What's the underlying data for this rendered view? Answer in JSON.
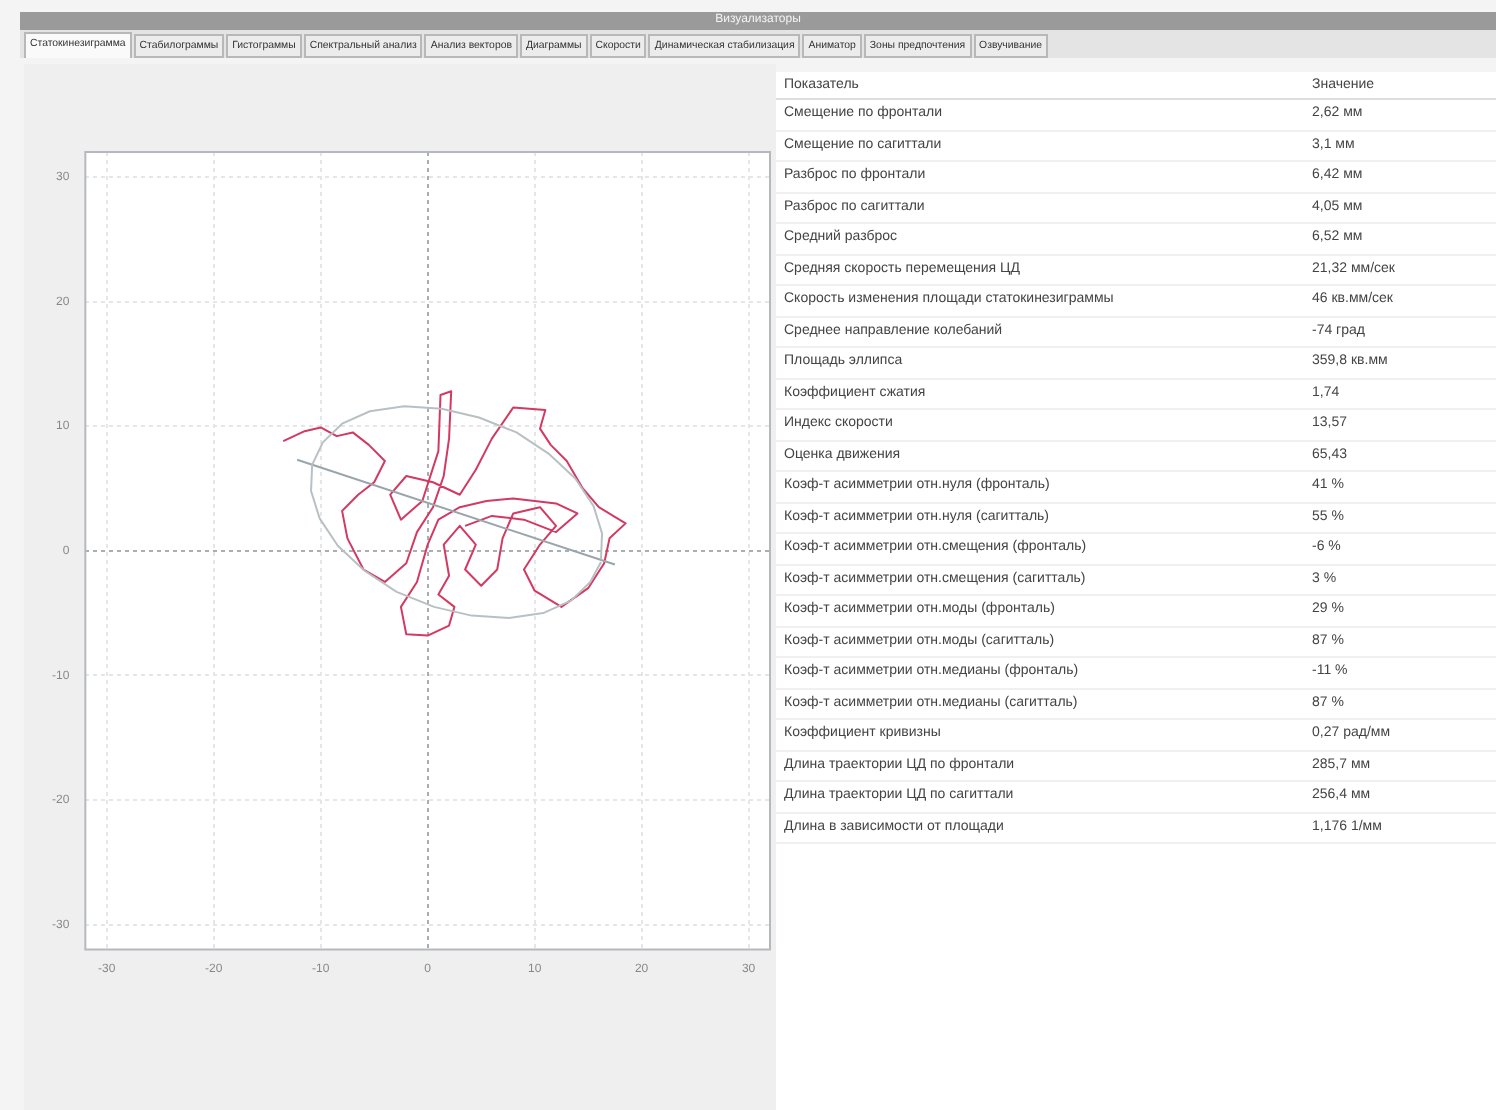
{
  "chart_data": [
    {
      "type": "other",
      "title": "Визуализаторы",
      "categories": [
        "Статокинезиграмма",
        "Стабилограммы",
        "Гистограммы",
        "Спектральный анализ",
        "Анализ векторов",
        "Диаграммы",
        "Скорости",
        "Динамическая стабилизация",
        "Аниматор",
        "Зоны предпочтения",
        "Озвучивание"
      ]
    },
    {
      "type": "line",
      "xlim": [
        -32,
        32
      ],
      "ylim": [
        -32,
        32
      ],
      "xticks": [
        -30,
        -20,
        -10,
        0,
        10,
        20,
        30
      ],
      "yticks": [
        -30,
        -20,
        -10,
        0,
        10,
        20,
        30
      ],
      "grid": true,
      "legend": false,
      "marker": "none",
      "line_style": "solid",
      "series": [
        {
          "color": "#b9c0c4",
          "x": [
            16.2,
            16.3,
            15.5,
            13.8,
            11.3,
            8.3,
            4.8,
            1.3,
            -2.2,
            -5.4,
            -8.0,
            -9.8,
            -10.8,
            -10.9,
            -10.1,
            -8.4,
            -5.9,
            -2.9,
            0.6,
            4.1,
            7.6,
            10.8,
            13.4,
            15.2,
            16.2
          ],
          "values": [
            -0.7,
            1.4,
            3.6,
            5.8,
            7.8,
            9.5,
            10.7,
            11.4,
            11.6,
            11.2,
            10.2,
            8.7,
            6.9,
            4.8,
            2.6,
            0.4,
            -1.6,
            -3.3,
            -4.5,
            -5.2,
            -5.4,
            -5.0,
            -4.0,
            -2.5,
            -0.9
          ]
        },
        {
          "color": "#9aa5ab",
          "x": [
            -12.2,
            17.5
          ],
          "values": [
            7.3,
            -1.1
          ]
        },
        {
          "color": "#d23a62",
          "x": [
            -13.5,
            -11.5,
            -10,
            -8.5,
            -7,
            -5.5,
            -4,
            -5,
            -6.5,
            -8,
            -7.5,
            -6,
            -4,
            -2,
            -1,
            0.5,
            1.5,
            2,
            2.2,
            1.2,
            1,
            -0.5,
            -2.5,
            -3.5,
            -2,
            0.5,
            3,
            4.5,
            6,
            8,
            11,
            10.5,
            11.5,
            13,
            14.5,
            16,
            18.5,
            17,
            16.5,
            15,
            12.5,
            10,
            9,
            10.5,
            12,
            10.5,
            8,
            7,
            6.5,
            5,
            3.5,
            4.5,
            3,
            1.5,
            2,
            1,
            2.5,
            2,
            0,
            -2,
            -2.5,
            -1,
            0,
            1,
            3,
            5.5,
            8,
            12,
            14,
            12,
            9,
            6,
            3.5
          ],
          "values": [
            8.8,
            9.6,
            9.9,
            9.2,
            9.5,
            8.5,
            7.2,
            5.5,
            4.5,
            3.2,
            1,
            -1.5,
            -2.5,
            -1,
            1.5,
            3.5,
            6,
            9,
            12.8,
            12.5,
            8,
            4,
            2.5,
            4.5,
            6,
            5.5,
            4.5,
            6.5,
            9,
            11.5,
            11.3,
            9.8,
            8.5,
            7.2,
            5,
            3.5,
            2.2,
            1,
            -1,
            -3,
            -4.5,
            -3.2,
            -1.5,
            0.5,
            2,
            3.5,
            3,
            1,
            -1.5,
            -2.8,
            -1.5,
            0.5,
            2,
            0.5,
            -2,
            -3.5,
            -4.5,
            -6,
            -6.8,
            -6.7,
            -4.5,
            -2.5,
            0.5,
            2.5,
            3.5,
            4,
            4.2,
            3.8,
            3,
            1.5,
            2.5,
            2.8,
            2
          ]
        }
      ]
    },
    {
      "type": "other",
      "annotations": [
        "Показатель",
        "Значение"
      ],
      "categories": [
        "Смещение по фронтали",
        "Смещение по сагиттали",
        "Разброс по фронтали",
        "Разброс по сагиттали",
        "Средний разброс",
        "Средняя скорость перемещения ЦД",
        "Скорость изменения площади статокинезиграммы",
        "Среднее направление колебаний",
        "Площадь эллипса",
        "Коэффициент сжатия",
        "Индекс скорости",
        "Оценка движения",
        "Коэф-т асимметрии отн.нуля (фронталь)",
        "Коэф-т асимметрии отн.нуля (сагитталь)",
        "Коэф-т асимметрии отн.смещения (фронталь)",
        "Коэф-т асимметрии отн.смещения (сагитталь)",
        "Коэф-т асимметрии отн.моды (фронталь)",
        "Коэф-т асимметрии отн.моды (сагитталь)",
        "Коэф-т асимметрии отн.медианы (фронталь)",
        "Коэф-т асимметрии отн.медианы (сагитталь)",
        "Коэффициент кривизны",
        "Длина траектории ЦД по фронтали",
        "Длина траектории ЦД по сагиттали",
        "Длина в зависимости от площади"
      ],
      "value_labels": [
        "2,62 мм",
        "3,1 мм",
        "6,42 мм",
        "4,05 мм",
        "6,52 мм",
        "21,32 мм/сек",
        "46 кв.мм/сек",
        "-74 град",
        "359,8 кв.мм",
        "1,74",
        "13,57",
        "65,43",
        "41 %",
        "55 %",
        "-6 %",
        "3 %",
        "29 %",
        "87 %",
        "-11 %",
        "87 %",
        "0,27 рад/мм",
        "285,7 мм",
        "256,4 мм",
        "1,176 1/мм"
      ]
    }
  ]
}
